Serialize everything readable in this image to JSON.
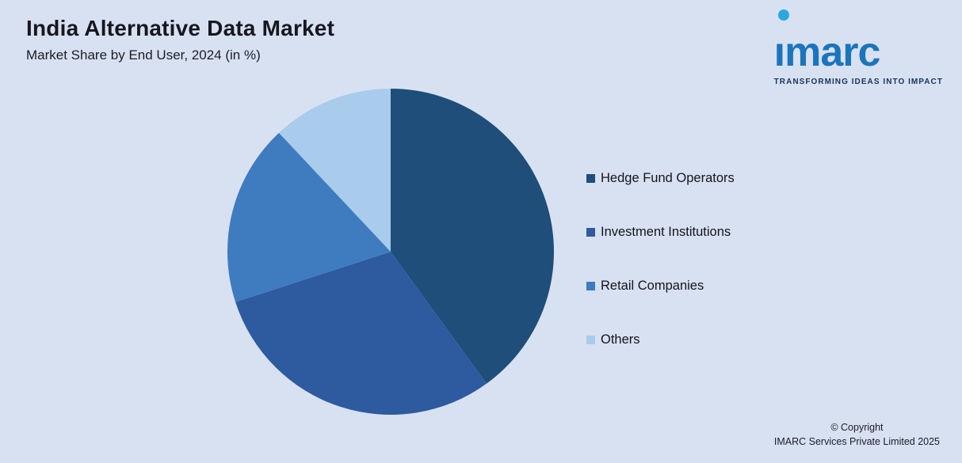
{
  "header": {
    "title": "India Alternative Data Market",
    "subtitle": "Market Share by End User, 2024 (in %)"
  },
  "logo": {
    "text": "imarc",
    "tagline": "TRANSFORMING IDEAS INTO IMPACT",
    "brand_color": "#1b75bc",
    "dot_color": "#29a8e0",
    "tagline_color": "#16335f"
  },
  "chart_data": {
    "type": "pie",
    "title": "India Alternative Data Market",
    "subtitle": "Market Share by End User, 2024 (in %)",
    "labels": [
      "Hedge Fund Operators",
      "Investment Institutions",
      "Retail Companies",
      "Others"
    ],
    "values": [
      40,
      30,
      18,
      12
    ],
    "colors": [
      "#1e4e79",
      "#2e5b9f",
      "#3e7cbf",
      "#a9cbec"
    ],
    "start_angle_deg": -90,
    "direction": "clockwise",
    "legend_position": "right",
    "background_color": "#d8e1f2"
  },
  "footer": {
    "copyright_line1": "© Copyright",
    "copyright_line2": "IMARC Services Private Limited 2025"
  }
}
